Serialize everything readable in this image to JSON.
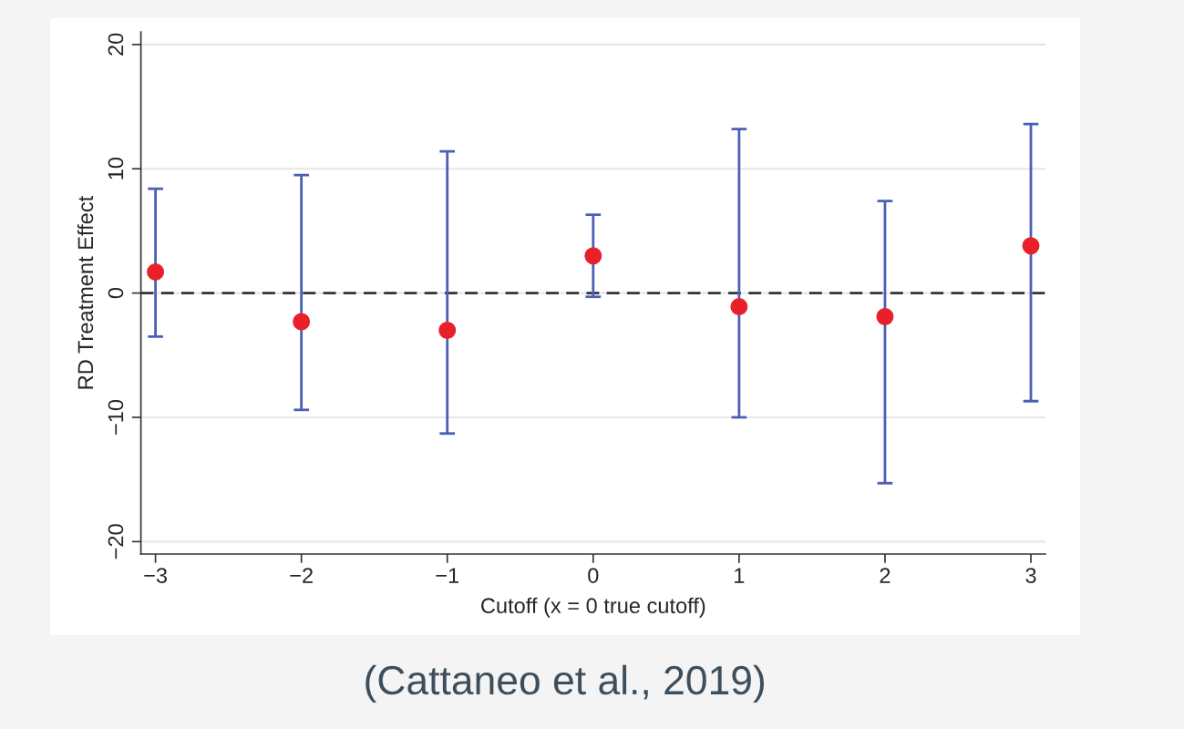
{
  "chart_data": {
    "type": "scatter",
    "xlabel": "Cutoff (x = 0 true cutoff)",
    "ylabel": "RD Treatment Effect",
    "x": [
      -3,
      -2,
      -1,
      0,
      1,
      2,
      3
    ],
    "series": [
      {
        "color": "#e8202a",
        "values": [
          1.7,
          -2.3,
          -3.0,
          3.0,
          -1.1,
          -1.9,
          3.8
        ],
        "errors": [
          [
            -3.5,
            8.4
          ],
          [
            -9.4,
            9.5
          ],
          [
            -11.3,
            11.4
          ],
          [
            -0.3,
            6.3
          ],
          [
            -10.0,
            13.2
          ],
          [
            -15.3,
            7.4
          ],
          [
            -8.7,
            13.6
          ]
        ]
      }
    ],
    "marker": "circle",
    "xlim": [
      -3.1,
      3.1
    ],
    "xticks": [
      {
        "value": -3,
        "label": "−3"
      },
      {
        "value": -2,
        "label": "−2"
      },
      {
        "value": -1,
        "label": "−1"
      },
      0,
      1,
      2,
      3
    ],
    "ylim": [
      -21,
      21
    ],
    "yticks": [
      {
        "value": -20,
        "label": "−20"
      },
      {
        "value": -10,
        "label": "−10"
      },
      0,
      10,
      20
    ],
    "grid": "y",
    "ref_lines": [
      {
        "axis": "y",
        "value": 0,
        "color": "#333333",
        "line_style": "dashed"
      }
    ],
    "annotations": [
      "(Cattaneo et al., 2019)"
    ]
  }
}
